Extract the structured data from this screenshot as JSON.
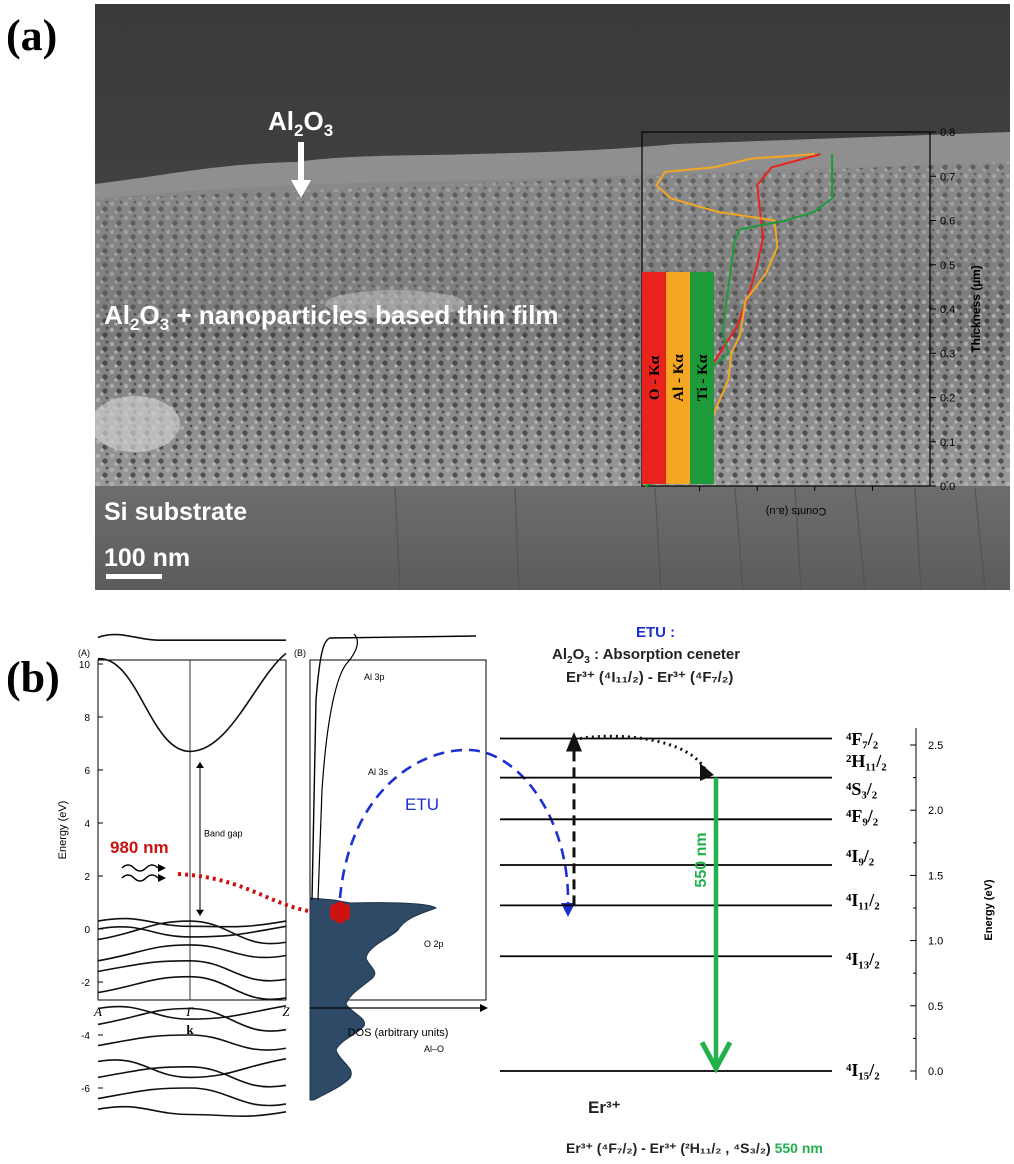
{
  "panel_a": {
    "letter": "(a)",
    "top_label": "Al",
    "top_label_sub1": "2",
    "top_label_mid": "O",
    "top_label_sub2": "3",
    "film_label_prefix": "Al",
    "film_label_sub1": "2",
    "film_label_mid": "O",
    "film_label_sub2": "3",
    "film_label_rest": " + nanoparticles based thin film",
    "substrate_label": "Si substrate",
    "scale_label": "100 nm",
    "colors": {
      "o": "#e8231d",
      "al": "#f5a623",
      "ti": "#1f9a3a",
      "sem_bg": "#6b6b6b"
    }
  },
  "eds_chart": {
    "chart_data": {
      "type": "line",
      "ylabel": "Thickness (µm)",
      "xlabel": "Counts (a.u)",
      "ylim": [
        0,
        0.8
      ],
      "yticks": [
        "0.0",
        "0.1",
        "0.2",
        "0.3",
        "0.4",
        "0.5",
        "0.6",
        "0.7",
        "0.8"
      ],
      "xlim": [
        0,
        1
      ],
      "series": [
        {
          "name": "O - Kα",
          "color": "#e8231d",
          "points": [
            [
              0.01,
              0.0
            ],
            [
              0.06,
              0.03
            ],
            [
              0.1,
              0.05
            ],
            [
              0.12,
              0.08
            ],
            [
              0.16,
              0.12
            ],
            [
              0.2,
              0.16
            ],
            [
              0.22,
              0.22
            ],
            [
              0.24,
              0.27
            ],
            [
              0.28,
              0.31
            ],
            [
              0.33,
              0.36
            ],
            [
              0.37,
              0.43
            ],
            [
              0.4,
              0.5
            ],
            [
              0.42,
              0.56
            ],
            [
              0.41,
              0.62
            ],
            [
              0.4,
              0.68
            ],
            [
              0.45,
              0.72
            ],
            [
              0.62,
              0.75
            ]
          ]
        },
        {
          "name": "Al - Kα",
          "color": "#f5a623",
          "points": [
            [
              0.01,
              0.0
            ],
            [
              0.07,
              0.02
            ],
            [
              0.12,
              0.04
            ],
            [
              0.16,
              0.08
            ],
            [
              0.22,
              0.12
            ],
            [
              0.26,
              0.18
            ],
            [
              0.3,
              0.24
            ],
            [
              0.31,
              0.3
            ],
            [
              0.34,
              0.34
            ],
            [
              0.36,
              0.42
            ],
            [
              0.43,
              0.48
            ],
            [
              0.47,
              0.54
            ],
            [
              0.46,
              0.6
            ],
            [
              0.26,
              0.62
            ],
            [
              0.1,
              0.65
            ],
            [
              0.05,
              0.68
            ],
            [
              0.08,
              0.71
            ],
            [
              0.25,
              0.72
            ],
            [
              0.38,
              0.74
            ],
            [
              0.6,
              0.75
            ]
          ]
        },
        {
          "name": "Ti - Kα",
          "color": "#1f9a3a",
          "points": [
            [
              0.01,
              0.0
            ],
            [
              0.1,
              0.02
            ],
            [
              0.14,
              0.05
            ],
            [
              0.2,
              0.1
            ],
            [
              0.22,
              0.15
            ],
            [
              0.24,
              0.2
            ],
            [
              0.23,
              0.26
            ],
            [
              0.3,
              0.3
            ],
            [
              0.28,
              0.35
            ],
            [
              0.29,
              0.4
            ],
            [
              0.3,
              0.45
            ],
            [
              0.31,
              0.5
            ],
            [
              0.32,
              0.55
            ],
            [
              0.34,
              0.58
            ],
            [
              0.5,
              0.6
            ],
            [
              0.6,
              0.62
            ],
            [
              0.66,
              0.65
            ],
            [
              0.66,
              0.75
            ]
          ]
        }
      ]
    },
    "legend": [
      {
        "label": "O - Kα",
        "color": "#e8231d"
      },
      {
        "label": "Al - Kα",
        "color": "#f5a623"
      },
      {
        "label": "Ti - Kα",
        "color": "#1f9a3a"
      }
    ]
  },
  "panel_b": {
    "letter": "(b)",
    "band": {
      "tag": "(A)",
      "ylabel": "Energy (eV)",
      "yticks": [
        "10",
        "8",
        "6",
        "4",
        "2",
        "0",
        "-2",
        "-4",
        "-6"
      ],
      "xticks": [
        "A",
        "Γ",
        "Z"
      ],
      "xlabel": "k",
      "band_gap_label": "Band gap",
      "laser_label": "980 nm"
    },
    "dos": {
      "tag": "(B)",
      "labels": [
        "Al 3p",
        "Al 3s",
        "O 2p",
        "Al–O"
      ],
      "xlabel": "DOS (arbitrary units)",
      "fill": "#2e4a66"
    },
    "etu_label": "ETU",
    "etu_title": "ETU :",
    "absorption_line_a": "Al",
    "absorption_line_sub1": "2",
    "absorption_line_mid": "O",
    "absorption_line_sub2": "3",
    "absorption_line_rest": " : Absorption ceneter",
    "transition_line": "Er³⁺ (⁴I₁₁/₂) - Er³⁺ (⁴F₇/₂)",
    "emission_label": "550 nm",
    "er_label": "Er³⁺",
    "bottom_caption_main": "Er³⁺ (⁴F₇/₂) -  Er³⁺ (²H₁₁/₂ , ⁴S₃/₂) ",
    "bottom_caption_nm": "550 nm",
    "energy_axis_label": "Energy (eV)",
    "energy_ticks": [
      "2.5",
      "2.0",
      "1.5",
      "1.0",
      "0.5",
      "0.0"
    ],
    "levels": [
      {
        "name": "⁴F₇/₂"
      },
      {
        "name": "²H₁₁/₂"
      },
      {
        "name": "⁴S₃/₂"
      },
      {
        "name": "⁴F₉/₂"
      },
      {
        "name": "⁴I₉/₂"
      },
      {
        "name": "⁴I₁₁/₂"
      },
      {
        "name": "⁴I₁₃/₂"
      },
      {
        "name": "⁴I₁₅/₂"
      }
    ],
    "colors": {
      "etu": "#1c2fd1",
      "laser": "#cc1111",
      "emission": "#22b04b"
    }
  }
}
